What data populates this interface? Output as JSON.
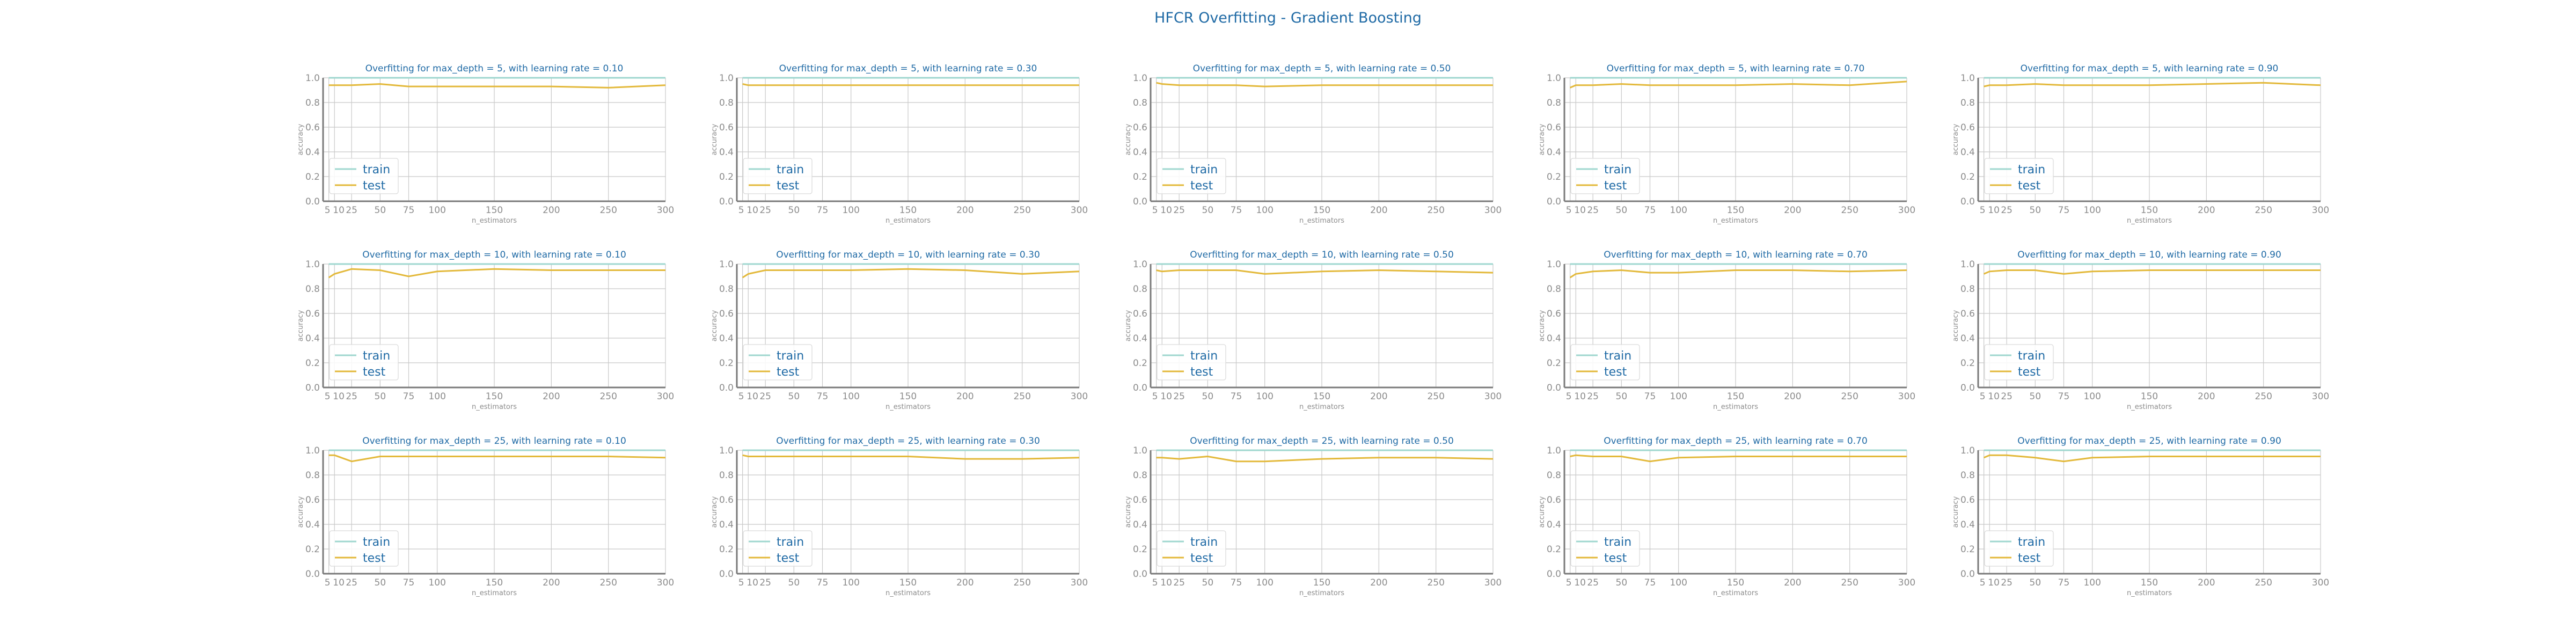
{
  "figure": {
    "suptitle": "HFCR Overfitting - Gradient Boosting"
  },
  "colors": {
    "train": "#9fd7cf",
    "test": "#e3b93b",
    "text": "#1f6aa5",
    "axis": "#8c8c8c",
    "grid": "#c8c8c8"
  },
  "chart_data": [
    {
      "type": "line",
      "title": "Overfitting for max_depth = 5, with learning rate = 0.10",
      "xlabel": "n_estimators",
      "ylabel": "accuracy",
      "x": [
        5,
        10,
        25,
        50,
        75,
        100,
        150,
        200,
        250,
        300
      ],
      "xticks": [
        "5",
        "10",
        "25",
        "50",
        "75",
        "100",
        "150",
        "200",
        "250",
        "300"
      ],
      "yticks": [
        "0.0",
        "0.2",
        "0.4",
        "0.6",
        "0.8",
        "1.0"
      ],
      "ylim": [
        0,
        1.0
      ],
      "grid": true,
      "legend": "lower-left",
      "series": [
        {
          "name": "train",
          "values": [
            1,
            1,
            1,
            1,
            1,
            1,
            1,
            1,
            1,
            1
          ]
        },
        {
          "name": "test",
          "values": [
            0.94,
            0.94,
            0.94,
            0.95,
            0.93,
            0.93,
            0.93,
            0.93,
            0.92,
            0.94
          ]
        }
      ]
    },
    {
      "type": "line",
      "title": "Overfitting for max_depth = 5, with learning rate = 0.30",
      "xlabel": "n_estimators",
      "ylabel": "accuracy",
      "x": [
        5,
        10,
        25,
        50,
        75,
        100,
        150,
        200,
        250,
        300
      ],
      "xticks": [
        "5",
        "10",
        "25",
        "50",
        "75",
        "100",
        "150",
        "200",
        "250",
        "300"
      ],
      "yticks": [
        "0.0",
        "0.2",
        "0.4",
        "0.6",
        "0.8",
        "1.0"
      ],
      "ylim": [
        0,
        1.0
      ],
      "grid": true,
      "legend": "lower-left",
      "series": [
        {
          "name": "train",
          "values": [
            1,
            1,
            1,
            1,
            1,
            1,
            1,
            1,
            1,
            1
          ]
        },
        {
          "name": "test",
          "values": [
            0.95,
            0.94,
            0.94,
            0.94,
            0.94,
            0.94,
            0.94,
            0.94,
            0.94,
            0.94
          ]
        }
      ]
    },
    {
      "type": "line",
      "title": "Overfitting for max_depth = 5, with learning rate = 0.50",
      "xlabel": "n_estimators",
      "ylabel": "accuracy",
      "x": [
        5,
        10,
        25,
        50,
        75,
        100,
        150,
        200,
        250,
        300
      ],
      "xticks": [
        "5",
        "10",
        "25",
        "50",
        "75",
        "100",
        "150",
        "200",
        "250",
        "300"
      ],
      "yticks": [
        "0.0",
        "0.2",
        "0.4",
        "0.6",
        "0.8",
        "1.0"
      ],
      "ylim": [
        0,
        1.0
      ],
      "grid": true,
      "legend": "lower-left",
      "series": [
        {
          "name": "train",
          "values": [
            1,
            1,
            1,
            1,
            1,
            1,
            1,
            1,
            1,
            1
          ]
        },
        {
          "name": "test",
          "values": [
            0.96,
            0.95,
            0.94,
            0.94,
            0.94,
            0.93,
            0.94,
            0.94,
            0.94,
            0.94
          ]
        }
      ]
    },
    {
      "type": "line",
      "title": "Overfitting for max_depth = 5, with learning rate = 0.70",
      "xlabel": "n_estimators",
      "ylabel": "accuracy",
      "x": [
        5,
        10,
        25,
        50,
        75,
        100,
        150,
        200,
        250,
        300
      ],
      "xticks": [
        "5",
        "10",
        "25",
        "50",
        "75",
        "100",
        "150",
        "200",
        "250",
        "300"
      ],
      "yticks": [
        "0.0",
        "0.2",
        "0.4",
        "0.6",
        "0.8",
        "1.0"
      ],
      "ylim": [
        0,
        1.0
      ],
      "grid": true,
      "legend": "lower-left",
      "series": [
        {
          "name": "train",
          "values": [
            1,
            1,
            1,
            1,
            1,
            1,
            1,
            1,
            1,
            1
          ]
        },
        {
          "name": "test",
          "values": [
            0.92,
            0.94,
            0.94,
            0.95,
            0.94,
            0.94,
            0.94,
            0.95,
            0.94,
            0.97
          ]
        }
      ]
    },
    {
      "type": "line",
      "title": "Overfitting for max_depth = 5, with learning rate = 0.90",
      "xlabel": "n_estimators",
      "ylabel": "accuracy",
      "x": [
        5,
        10,
        25,
        50,
        75,
        100,
        150,
        200,
        250,
        300
      ],
      "xticks": [
        "5",
        "10",
        "25",
        "50",
        "75",
        "100",
        "150",
        "200",
        "250",
        "300"
      ],
      "yticks": [
        "0.0",
        "0.2",
        "0.4",
        "0.6",
        "0.8",
        "1.0"
      ],
      "ylim": [
        0,
        1.0
      ],
      "grid": true,
      "legend": "lower-left",
      "series": [
        {
          "name": "train",
          "values": [
            1,
            1,
            1,
            1,
            1,
            1,
            1,
            1,
            1,
            1
          ]
        },
        {
          "name": "test",
          "values": [
            0.93,
            0.94,
            0.94,
            0.95,
            0.94,
            0.94,
            0.94,
            0.95,
            0.96,
            0.94
          ]
        }
      ]
    },
    {
      "type": "line",
      "title": "Overfitting for max_depth = 10, with learning rate = 0.10",
      "xlabel": "n_estimators",
      "ylabel": "accuracy",
      "x": [
        5,
        10,
        25,
        50,
        75,
        100,
        150,
        200,
        250,
        300
      ],
      "xticks": [
        "5",
        "10",
        "25",
        "50",
        "75",
        "100",
        "150",
        "200",
        "250",
        "300"
      ],
      "yticks": [
        "0.0",
        "0.2",
        "0.4",
        "0.6",
        "0.8",
        "1.0"
      ],
      "ylim": [
        0,
        1.0
      ],
      "grid": true,
      "legend": "lower-left",
      "series": [
        {
          "name": "train",
          "values": [
            1,
            1,
            1,
            1,
            1,
            1,
            1,
            1,
            1,
            1
          ]
        },
        {
          "name": "test",
          "values": [
            0.89,
            0.92,
            0.96,
            0.95,
            0.9,
            0.94,
            0.96,
            0.95,
            0.95,
            0.95
          ]
        }
      ]
    },
    {
      "type": "line",
      "title": "Overfitting for max_depth = 10, with learning rate = 0.30",
      "xlabel": "n_estimators",
      "ylabel": "accuracy",
      "x": [
        5,
        10,
        25,
        50,
        75,
        100,
        150,
        200,
        250,
        300
      ],
      "xticks": [
        "5",
        "10",
        "25",
        "50",
        "75",
        "100",
        "150",
        "200",
        "250",
        "300"
      ],
      "yticks": [
        "0.0",
        "0.2",
        "0.4",
        "0.6",
        "0.8",
        "1.0"
      ],
      "ylim": [
        0,
        1.0
      ],
      "grid": true,
      "legend": "lower-left",
      "series": [
        {
          "name": "train",
          "values": [
            1,
            1,
            1,
            1,
            1,
            1,
            1,
            1,
            1,
            1
          ]
        },
        {
          "name": "test",
          "values": [
            0.89,
            0.92,
            0.95,
            0.95,
            0.95,
            0.95,
            0.96,
            0.95,
            0.92,
            0.94
          ]
        }
      ]
    },
    {
      "type": "line",
      "title": "Overfitting for max_depth = 10, with learning rate = 0.50",
      "xlabel": "n_estimators",
      "ylabel": "accuracy",
      "x": [
        5,
        10,
        25,
        50,
        75,
        100,
        150,
        200,
        250,
        300
      ],
      "xticks": [
        "5",
        "10",
        "25",
        "50",
        "75",
        "100",
        "150",
        "200",
        "250",
        "300"
      ],
      "yticks": [
        "0.0",
        "0.2",
        "0.4",
        "0.6",
        "0.8",
        "1.0"
      ],
      "ylim": [
        0,
        1.0
      ],
      "grid": true,
      "legend": "lower-left",
      "series": [
        {
          "name": "train",
          "values": [
            1,
            1,
            1,
            1,
            1,
            1,
            1,
            1,
            1,
            1
          ]
        },
        {
          "name": "test",
          "values": [
            0.95,
            0.94,
            0.95,
            0.95,
            0.95,
            0.92,
            0.94,
            0.95,
            0.94,
            0.93
          ]
        }
      ]
    },
    {
      "type": "line",
      "title": "Overfitting for max_depth = 10, with learning rate = 0.70",
      "xlabel": "n_estimators",
      "ylabel": "accuracy",
      "x": [
        5,
        10,
        25,
        50,
        75,
        100,
        150,
        200,
        250,
        300
      ],
      "xticks": [
        "5",
        "10",
        "25",
        "50",
        "75",
        "100",
        "150",
        "200",
        "250",
        "300"
      ],
      "yticks": [
        "0.0",
        "0.2",
        "0.4",
        "0.6",
        "0.8",
        "1.0"
      ],
      "ylim": [
        0,
        1.0
      ],
      "grid": true,
      "legend": "lower-left",
      "series": [
        {
          "name": "train",
          "values": [
            1,
            1,
            1,
            1,
            1,
            1,
            1,
            1,
            1,
            1
          ]
        },
        {
          "name": "test",
          "values": [
            0.89,
            0.92,
            0.94,
            0.95,
            0.93,
            0.93,
            0.95,
            0.95,
            0.94,
            0.95
          ]
        }
      ]
    },
    {
      "type": "line",
      "title": "Overfitting for max_depth = 10, with learning rate = 0.90",
      "xlabel": "n_estimators",
      "ylabel": "accuracy",
      "x": [
        5,
        10,
        25,
        50,
        75,
        100,
        150,
        200,
        250,
        300
      ],
      "xticks": [
        "5",
        "10",
        "25",
        "50",
        "75",
        "100",
        "150",
        "200",
        "250",
        "300"
      ],
      "yticks": [
        "0.0",
        "0.2",
        "0.4",
        "0.6",
        "0.8",
        "1.0"
      ],
      "ylim": [
        0,
        1.0
      ],
      "grid": true,
      "legend": "lower-left",
      "series": [
        {
          "name": "train",
          "values": [
            1,
            1,
            1,
            1,
            1,
            1,
            1,
            1,
            1,
            1
          ]
        },
        {
          "name": "test",
          "values": [
            0.92,
            0.94,
            0.95,
            0.95,
            0.92,
            0.94,
            0.95,
            0.95,
            0.95,
            0.95
          ]
        }
      ]
    },
    {
      "type": "line",
      "title": "Overfitting for max_depth = 25, with learning rate = 0.10",
      "xlabel": "n_estimators",
      "ylabel": "accuracy",
      "x": [
        5,
        10,
        25,
        50,
        75,
        100,
        150,
        200,
        250,
        300
      ],
      "xticks": [
        "5",
        "10",
        "25",
        "50",
        "75",
        "100",
        "150",
        "200",
        "250",
        "300"
      ],
      "yticks": [
        "0.0",
        "0.2",
        "0.4",
        "0.6",
        "0.8",
        "1.0"
      ],
      "ylim": [
        0,
        1.0
      ],
      "grid": true,
      "legend": "lower-left",
      "series": [
        {
          "name": "train",
          "values": [
            1,
            1,
            1,
            1,
            1,
            1,
            1,
            1,
            1,
            1
          ]
        },
        {
          "name": "test",
          "values": [
            0.96,
            0.96,
            0.91,
            0.95,
            0.95,
            0.95,
            0.95,
            0.95,
            0.95,
            0.94
          ]
        }
      ]
    },
    {
      "type": "line",
      "title": "Overfitting for max_depth = 25, with learning rate = 0.30",
      "xlabel": "n_estimators",
      "ylabel": "accuracy",
      "x": [
        5,
        10,
        25,
        50,
        75,
        100,
        150,
        200,
        250,
        300
      ],
      "xticks": [
        "5",
        "10",
        "25",
        "50",
        "75",
        "100",
        "150",
        "200",
        "250",
        "300"
      ],
      "yticks": [
        "0.0",
        "0.2",
        "0.4",
        "0.6",
        "0.8",
        "1.0"
      ],
      "ylim": [
        0,
        1.0
      ],
      "grid": true,
      "legend": "lower-left",
      "series": [
        {
          "name": "train",
          "values": [
            1,
            1,
            1,
            1,
            1,
            1,
            1,
            1,
            1,
            1
          ]
        },
        {
          "name": "test",
          "values": [
            0.96,
            0.95,
            0.95,
            0.95,
            0.95,
            0.95,
            0.95,
            0.93,
            0.93,
            0.94
          ]
        }
      ]
    },
    {
      "type": "line",
      "title": "Overfitting for max_depth = 25, with learning rate = 0.50",
      "xlabel": "n_estimators",
      "ylabel": "accuracy",
      "x": [
        5,
        10,
        25,
        50,
        75,
        100,
        150,
        200,
        250,
        300
      ],
      "xticks": [
        "5",
        "10",
        "25",
        "50",
        "75",
        "100",
        "150",
        "200",
        "250",
        "300"
      ],
      "yticks": [
        "0.0",
        "0.2",
        "0.4",
        "0.6",
        "0.8",
        "1.0"
      ],
      "ylim": [
        0,
        1.0
      ],
      "grid": true,
      "legend": "lower-left",
      "series": [
        {
          "name": "train",
          "values": [
            1,
            1,
            1,
            1,
            1,
            1,
            1,
            1,
            1,
            1
          ]
        },
        {
          "name": "test",
          "values": [
            0.94,
            0.94,
            0.93,
            0.95,
            0.91,
            0.91,
            0.93,
            0.94,
            0.94,
            0.93
          ]
        }
      ]
    },
    {
      "type": "line",
      "title": "Overfitting for max_depth = 25, with learning rate = 0.70",
      "xlabel": "n_estimators",
      "ylabel": "accuracy",
      "x": [
        5,
        10,
        25,
        50,
        75,
        100,
        150,
        200,
        250,
        300
      ],
      "xticks": [
        "5",
        "10",
        "25",
        "50",
        "75",
        "100",
        "150",
        "200",
        "250",
        "300"
      ],
      "yticks": [
        "0.0",
        "0.2",
        "0.4",
        "0.6",
        "0.8",
        "1.0"
      ],
      "ylim": [
        0,
        1.0
      ],
      "grid": true,
      "legend": "lower-left",
      "series": [
        {
          "name": "train",
          "values": [
            1,
            1,
            1,
            1,
            1,
            1,
            1,
            1,
            1,
            1
          ]
        },
        {
          "name": "test",
          "values": [
            0.95,
            0.96,
            0.95,
            0.95,
            0.91,
            0.94,
            0.95,
            0.95,
            0.95,
            0.95
          ]
        }
      ]
    },
    {
      "type": "line",
      "title": "Overfitting for max_depth = 25, with learning rate = 0.90",
      "xlabel": "n_estimators",
      "ylabel": "accuracy",
      "x": [
        5,
        10,
        25,
        50,
        75,
        100,
        150,
        200,
        250,
        300
      ],
      "xticks": [
        "5",
        "10",
        "25",
        "50",
        "75",
        "100",
        "150",
        "200",
        "250",
        "300"
      ],
      "yticks": [
        "0.0",
        "0.2",
        "0.4",
        "0.6",
        "0.8",
        "1.0"
      ],
      "ylim": [
        0,
        1.0
      ],
      "grid": true,
      "legend": "lower-left",
      "series": [
        {
          "name": "train",
          "values": [
            1,
            1,
            1,
            1,
            1,
            1,
            1,
            1,
            1,
            1
          ]
        },
        {
          "name": "test",
          "values": [
            0.94,
            0.96,
            0.96,
            0.94,
            0.91,
            0.94,
            0.95,
            0.95,
            0.95,
            0.95
          ]
        }
      ]
    }
  ]
}
